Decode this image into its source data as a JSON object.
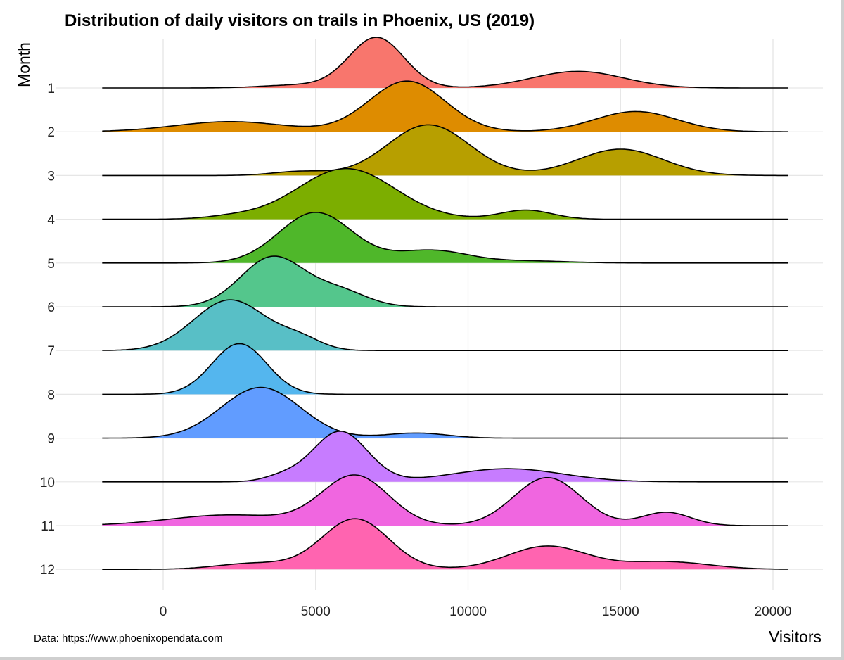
{
  "chart_data": {
    "type": "ridgeline",
    "title": "Distribution of daily visitors on trails in Phoenix, US (2019)",
    "xlabel": "Visitors",
    "ylabel": "Month",
    "caption": "Data: https://www.phoenixopendata.com",
    "xlim": [
      -2000,
      20500
    ],
    "xticks": [
      0,
      5000,
      10000,
      15000,
      20000
    ],
    "grid": true,
    "legend": "none",
    "series": [
      {
        "name": "1",
        "color": "#F8766D",
        "peaks": [
          [
            7000,
            1.0,
            900
          ],
          [
            13600,
            0.33,
            1500
          ],
          [
            4500,
            0.06,
            1200
          ]
        ]
      },
      {
        "name": "2",
        "color": "#DE8C00",
        "peaks": [
          [
            8000,
            1.0,
            1250
          ],
          [
            15500,
            0.4,
            1350
          ],
          [
            2200,
            0.2,
            1800
          ]
        ]
      },
      {
        "name": "3",
        "color": "#B79F00",
        "peaks": [
          [
            8700,
            1.0,
            1350
          ],
          [
            15000,
            0.52,
            1400
          ],
          [
            4500,
            0.08,
            900
          ]
        ]
      },
      {
        "name": "4",
        "color": "#7CAE00",
        "peaks": [
          [
            6000,
            1.0,
            1600
          ],
          [
            11900,
            0.18,
            850
          ],
          [
            2300,
            0.05,
            900
          ]
        ]
      },
      {
        "name": "5",
        "color": "#4FB72A",
        "peaks": [
          [
            5000,
            1.0,
            1200
          ],
          [
            8800,
            0.25,
            1200
          ],
          [
            12000,
            0.04,
            1300
          ]
        ]
      },
      {
        "name": "6",
        "color": "#54C68C",
        "peaks": [
          [
            3600,
            1.0,
            1050
          ],
          [
            5800,
            0.3,
            900
          ]
        ]
      },
      {
        "name": "7",
        "color": "#58BFC6",
        "peaks": [
          [
            2200,
            1.0,
            1200
          ],
          [
            4500,
            0.2,
            700
          ]
        ]
      },
      {
        "name": "8",
        "color": "#54B6EE",
        "peaks": [
          [
            2500,
            1.0,
            900
          ]
        ]
      },
      {
        "name": "9",
        "color": "#619CFF",
        "peaks": [
          [
            3200,
            1.0,
            1300
          ],
          [
            8300,
            0.1,
            1000
          ]
        ]
      },
      {
        "name": "10",
        "color": "#C77CFF",
        "peaks": [
          [
            5800,
            1.0,
            900
          ],
          [
            11300,
            0.26,
            1800
          ],
          [
            3900,
            0.1,
            600
          ]
        ]
      },
      {
        "name": "11",
        "color": "#F066E0",
        "peaks": [
          [
            6300,
            0.74,
            1100
          ],
          [
            12600,
            0.72,
            1100
          ],
          [
            16500,
            0.2,
            800
          ],
          [
            2200,
            0.16,
            2000
          ]
        ]
      },
      {
        "name": "12",
        "color": "#FF64B0",
        "peaks": [
          [
            6300,
            1.0,
            1100
          ],
          [
            12600,
            0.46,
            1300
          ],
          [
            16500,
            0.15,
            1400
          ],
          [
            3000,
            0.12,
            1200
          ]
        ]
      }
    ]
  }
}
